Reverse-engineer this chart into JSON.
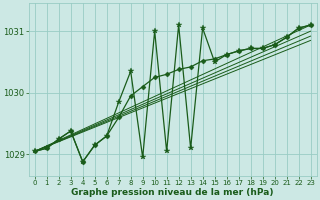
{
  "bg_color": "#cce8e4",
  "grid_color": "#99ccc4",
  "line_color": "#1a5c1a",
  "xlabel": "Graphe pression niveau de la mer (hPa)",
  "ylabel_ticks": [
    1029,
    1030,
    1031
  ],
  "xlim": [
    -0.5,
    23.5
  ],
  "ylim": [
    1028.65,
    1031.45
  ],
  "xticks": [
    0,
    1,
    2,
    3,
    4,
    5,
    6,
    7,
    8,
    9,
    10,
    11,
    12,
    13,
    14,
    15,
    16,
    17,
    18,
    19,
    20,
    21,
    22,
    23
  ],
  "series_smooth": {
    "x": [
      0,
      1,
      2,
      3,
      4,
      5,
      6,
      7,
      8,
      9,
      10,
      11,
      12,
      13,
      14,
      15,
      16,
      17,
      18,
      19,
      20,
      21,
      22,
      23
    ],
    "y": [
      1029.05,
      1029.1,
      1029.25,
      1029.38,
      1028.88,
      1029.15,
      1029.3,
      1029.6,
      1029.95,
      1030.1,
      1030.25,
      1030.3,
      1030.38,
      1030.42,
      1030.52,
      1030.55,
      1030.62,
      1030.68,
      1030.72,
      1030.72,
      1030.78,
      1030.9,
      1031.05,
      1031.1
    ]
  },
  "series_spiky": {
    "x": [
      0,
      1,
      2,
      3,
      4,
      5,
      6,
      7,
      8,
      9,
      10,
      11,
      12,
      13,
      14,
      15,
      16,
      17,
      18,
      19,
      20,
      21,
      22,
      23
    ],
    "y": [
      1029.05,
      1029.1,
      1029.25,
      1029.38,
      1028.88,
      1029.15,
      1029.3,
      1029.85,
      1030.35,
      1028.95,
      1031.0,
      1029.05,
      1031.1,
      1029.1,
      1031.05,
      1030.5,
      1030.62,
      1030.68,
      1030.72,
      1030.72,
      1030.78,
      1030.9,
      1031.05,
      1031.1
    ]
  },
  "trend_lines": [
    {
      "x": [
        0,
        23
      ],
      "y": [
        1029.05,
        1030.85
      ]
    },
    {
      "x": [
        0,
        23
      ],
      "y": [
        1029.05,
        1030.92
      ]
    },
    {
      "x": [
        0,
        23
      ],
      "y": [
        1029.05,
        1031.0
      ]
    },
    {
      "x": [
        0,
        23
      ],
      "y": [
        1029.05,
        1031.1
      ]
    }
  ]
}
